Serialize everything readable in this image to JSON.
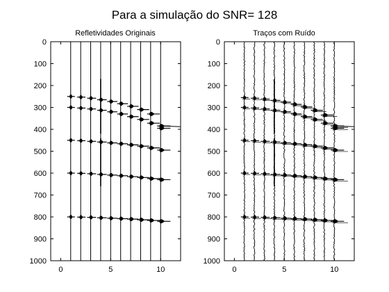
{
  "figure_title": "Para a simulação do SNR= 128",
  "colors": {
    "background": "#ffffff",
    "trace": "#000000",
    "axes": "#000000"
  },
  "chart_data": [
    {
      "type": "line",
      "title": "Refletividades Originais",
      "xlabel": "",
      "ylabel": "",
      "xlim": [
        -1,
        12
      ],
      "ylim": [
        0,
        1000
      ],
      "y_reversed": true,
      "xticks": [
        0,
        5,
        10
      ],
      "yticks": [
        0,
        100,
        200,
        300,
        400,
        500,
        600,
        700,
        800,
        900,
        1000
      ],
      "grid": false,
      "noise": false,
      "trace_positions": [
        1,
        2,
        3,
        4,
        5,
        6,
        7,
        8,
        9,
        10
      ],
      "reflectors": [
        {
          "name": "",
          "times": [
            250,
            253,
            258,
            265,
            273,
            283,
            295,
            310,
            330,
            385
          ]
        },
        {
          "name": "",
          "times": [
            300,
            303,
            307,
            313,
            320,
            330,
            342,
            355,
            372,
            395
          ]
        },
        {
          "name": "",
          "times": [
            450,
            452,
            455,
            458,
            462,
            466,
            471,
            477,
            485,
            495
          ]
        },
        {
          "name": "",
          "times": [
            600,
            601,
            603,
            606,
            609,
            612,
            616,
            620,
            625,
            630
          ]
        },
        {
          "name": "",
          "times": [
            800,
            801,
            802,
            804,
            806,
            808,
            810,
            813,
            816,
            820
          ]
        }
      ]
    },
    {
      "type": "line",
      "title": "Traços com Ruído",
      "xlabel": "",
      "ylabel": "",
      "xlim": [
        -1,
        12
      ],
      "ylim": [
        0,
        1000
      ],
      "y_reversed": true,
      "xticks": [
        0,
        5,
        10
      ],
      "yticks": [
        0,
        100,
        200,
        300,
        400,
        500,
        600,
        700,
        800,
        900,
        1000
      ],
      "grid": false,
      "noise": true,
      "trace_positions": [
        1,
        2,
        3,
        4,
        5,
        6,
        7,
        8,
        9,
        10
      ],
      "reflectors": [
        {
          "name": "",
          "times": [
            255,
            258,
            262,
            268,
            276,
            286,
            298,
            313,
            335,
            385
          ]
        },
        {
          "name": "",
          "times": [
            300,
            303,
            307,
            313,
            320,
            330,
            342,
            355,
            372,
            395
          ]
        },
        {
          "name": "",
          "times": [
            450,
            452,
            455,
            458,
            462,
            466,
            471,
            477,
            485,
            495
          ]
        },
        {
          "name": "",
          "times": [
            600,
            601,
            603,
            606,
            609,
            612,
            616,
            620,
            625,
            630
          ]
        },
        {
          "name": "",
          "times": [
            800,
            801,
            802,
            804,
            806,
            808,
            810,
            813,
            816,
            820
          ]
        }
      ]
    }
  ]
}
